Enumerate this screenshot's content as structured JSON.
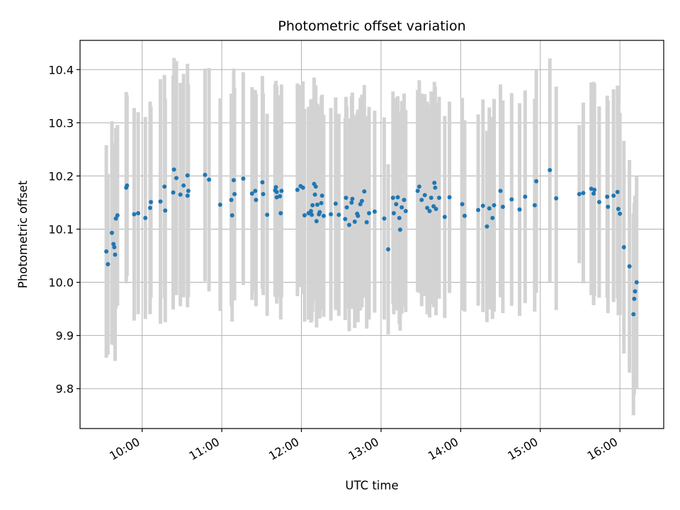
{
  "chart_data": {
    "type": "scatter",
    "title": "Photometric offset variation",
    "xlabel": "UTC time",
    "ylabel": "Photometric offset",
    "x_ticks": [
      "10:00",
      "11:00",
      "12:00",
      "13:00",
      "14:00",
      "15:00",
      "16:00"
    ],
    "x_tick_hours": [
      10,
      11,
      12,
      13,
      14,
      15,
      16
    ],
    "y_ticks": [
      "9.8",
      "9.9",
      "10.0",
      "10.1",
      "10.2",
      "10.3",
      "10.4"
    ],
    "y_tick_values": [
      9.8,
      9.9,
      10.0,
      10.1,
      10.2,
      10.3,
      10.4
    ],
    "xlim": [
      9.22,
      16.55
    ],
    "ylim": [
      9.725,
      10.455
    ],
    "grid": true,
    "colors": {
      "point": "#1f77b4",
      "errorbar": "#d3d3d3",
      "grid": "#b0b0b0"
    },
    "series": [
      {
        "x_unit": "hours UTC",
        "points": [
          [
            9.55,
            10.058,
            0.2
          ],
          [
            9.57,
            10.034,
            0.17
          ],
          [
            9.62,
            10.093,
            0.21
          ],
          [
            9.64,
            10.072,
            0.19
          ],
          [
            9.65,
            10.066,
            0.18
          ],
          [
            9.66,
            10.052,
            0.2
          ],
          [
            9.67,
            10.12,
            0.17
          ],
          [
            9.69,
            10.126,
            0.17
          ],
          [
            9.8,
            10.178,
            0.18
          ],
          [
            9.81,
            10.182,
            0.17
          ],
          [
            9.9,
            10.128,
            0.2
          ],
          [
            9.95,
            10.13,
            0.19
          ],
          [
            10.04,
            10.121,
            0.19
          ],
          [
            10.1,
            10.14,
            0.2
          ],
          [
            10.11,
            10.151,
            0.18
          ],
          [
            10.23,
            10.152,
            0.23
          ],
          [
            10.28,
            10.18,
            0.21
          ],
          [
            10.29,
            10.135,
            0.21
          ],
          [
            10.39,
            10.169,
            0.22
          ],
          [
            10.4,
            10.212,
            0.21
          ],
          [
            10.43,
            10.196,
            0.22
          ],
          [
            10.48,
            10.165,
            0.21
          ],
          [
            10.52,
            10.182,
            0.21
          ],
          [
            10.57,
            10.201,
            0.21
          ],
          [
            10.57,
            10.163,
            0.21
          ],
          [
            10.58,
            10.172,
            0.2
          ],
          [
            10.79,
            10.202,
            0.2
          ],
          [
            10.84,
            10.193,
            0.21
          ],
          [
            10.98,
            10.146,
            0.2
          ],
          [
            11.12,
            10.155,
            0.2
          ],
          [
            11.13,
            10.126,
            0.2
          ],
          [
            11.15,
            10.192,
            0.21
          ],
          [
            11.16,
            10.166,
            0.2
          ],
          [
            11.27,
            10.195,
            0.2
          ],
          [
            11.38,
            10.167,
            0.2
          ],
          [
            11.42,
            10.172,
            0.19
          ],
          [
            11.43,
            10.155,
            0.2
          ],
          [
            11.51,
            10.188,
            0.2
          ],
          [
            11.52,
            10.166,
            0.19
          ],
          [
            11.57,
            10.127,
            0.19
          ],
          [
            11.67,
            10.173,
            0.2
          ],
          [
            11.68,
            10.179,
            0.2
          ],
          [
            11.69,
            10.17,
            0.2
          ],
          [
            11.69,
            10.16,
            0.2
          ],
          [
            11.73,
            10.162,
            0.19
          ],
          [
            11.74,
            10.13,
            0.2
          ],
          [
            11.75,
            10.172,
            0.2
          ],
          [
            11.95,
            10.174,
            0.2
          ],
          [
            11.99,
            10.181,
            0.19
          ],
          [
            12.02,
            10.178,
            0.2
          ],
          [
            12.04,
            10.126,
            0.2
          ],
          [
            12.09,
            10.13,
            0.2
          ],
          [
            12.12,
            10.134,
            0.21
          ],
          [
            12.13,
            10.127,
            0.2
          ],
          [
            12.14,
            10.145,
            0.2
          ],
          [
            12.16,
            10.185,
            0.2
          ],
          [
            12.17,
            10.165,
            0.2
          ],
          [
            12.18,
            10.18,
            0.19
          ],
          [
            12.19,
            10.115,
            0.2
          ],
          [
            12.2,
            10.146,
            0.19
          ],
          [
            12.22,
            10.128,
            0.19
          ],
          [
            12.23,
            10.132,
            0.2
          ],
          [
            12.25,
            10.149,
            0.2
          ],
          [
            12.26,
            10.163,
            0.19
          ],
          [
            12.28,
            10.125,
            0.19
          ],
          [
            12.37,
            10.128,
            0.2
          ],
          [
            12.43,
            10.148,
            0.2
          ],
          [
            12.47,
            10.127,
            0.19
          ],
          [
            12.55,
            10.119,
            0.19
          ],
          [
            12.56,
            10.159,
            0.19
          ],
          [
            12.57,
            10.141,
            0.19
          ],
          [
            12.6,
            10.108,
            0.2
          ],
          [
            12.63,
            10.15,
            0.2
          ],
          [
            12.64,
            10.157,
            0.2
          ],
          [
            12.67,
            10.114,
            0.2
          ],
          [
            12.7,
            10.129,
            0.19
          ],
          [
            12.71,
            10.125,
            0.2
          ],
          [
            12.74,
            10.147,
            0.2
          ],
          [
            12.76,
            10.153,
            0.2
          ],
          [
            12.79,
            10.171,
            0.2
          ],
          [
            12.82,
            10.113,
            0.2
          ],
          [
            12.85,
            10.13,
            0.2
          ],
          [
            12.92,
            10.133,
            0.19
          ],
          [
            13.04,
            10.12,
            0.19
          ],
          [
            13.09,
            10.062,
            0.16
          ],
          [
            13.15,
            10.159,
            0.2
          ],
          [
            13.16,
            10.13,
            0.19
          ],
          [
            13.19,
            10.147,
            0.2
          ],
          [
            13.21,
            10.16,
            0.19
          ],
          [
            13.23,
            10.121,
            0.2
          ],
          [
            13.24,
            10.099,
            0.19
          ],
          [
            13.26,
            10.141,
            0.2
          ],
          [
            13.29,
            10.155,
            0.2
          ],
          [
            13.31,
            10.134,
            0.19
          ],
          [
            13.46,
            10.172,
            0.19
          ],
          [
            13.48,
            10.18,
            0.2
          ],
          [
            13.51,
            10.155,
            0.2
          ],
          [
            13.55,
            10.164,
            0.19
          ],
          [
            13.58,
            10.14,
            0.2
          ],
          [
            13.61,
            10.134,
            0.2
          ],
          [
            13.63,
            10.159,
            0.2
          ],
          [
            13.66,
            10.143,
            0.19
          ],
          [
            13.67,
            10.187,
            0.19
          ],
          [
            13.68,
            10.178,
            0.19
          ],
          [
            13.69,
            10.138,
            0.2
          ],
          [
            13.73,
            10.159,
            0.19
          ],
          [
            13.8,
            10.123,
            0.19
          ],
          [
            13.86,
            10.16,
            0.18
          ],
          [
            14.02,
            10.147,
            0.2
          ],
          [
            14.05,
            10.125,
            0.18
          ],
          [
            14.22,
            10.136,
            0.18
          ],
          [
            14.28,
            10.144,
            0.2
          ],
          [
            14.33,
            10.105,
            0.18
          ],
          [
            14.36,
            10.139,
            0.19
          ],
          [
            14.4,
            10.121,
            0.19
          ],
          [
            14.42,
            10.145,
            0.2
          ],
          [
            14.5,
            10.172,
            0.2
          ],
          [
            14.53,
            10.142,
            0.2
          ],
          [
            14.64,
            10.156,
            0.2
          ],
          [
            14.74,
            10.137,
            0.2
          ],
          [
            14.81,
            10.161,
            0.2
          ],
          [
            14.93,
            10.145,
            0.2
          ],
          [
            14.95,
            10.19,
            0.21
          ],
          [
            15.12,
            10.211,
            0.21
          ],
          [
            15.2,
            10.158,
            0.21
          ],
          [
            15.49,
            10.166,
            0.13
          ],
          [
            15.54,
            10.168,
            0.17
          ],
          [
            15.64,
            10.176,
            0.2
          ],
          [
            15.67,
            10.167,
            0.21
          ],
          [
            15.68,
            10.174,
            0.2
          ],
          [
            15.74,
            10.151,
            0.18
          ],
          [
            15.84,
            10.161,
            0.19
          ],
          [
            15.85,
            10.142,
            0.2
          ],
          [
            15.92,
            10.163,
            0.2
          ],
          [
            15.97,
            10.17,
            0.2
          ],
          [
            15.98,
            10.138,
            0.2
          ],
          [
            16.0,
            10.129,
            0.19
          ],
          [
            16.05,
            10.066,
            0.2
          ],
          [
            16.12,
            10.03,
            0.2
          ],
          [
            16.17,
            9.94,
            0.19
          ],
          [
            16.18,
            9.969,
            0.18
          ],
          [
            16.19,
            9.983,
            0.18
          ],
          [
            16.21,
            10.0,
            0.2
          ]
        ]
      }
    ]
  }
}
